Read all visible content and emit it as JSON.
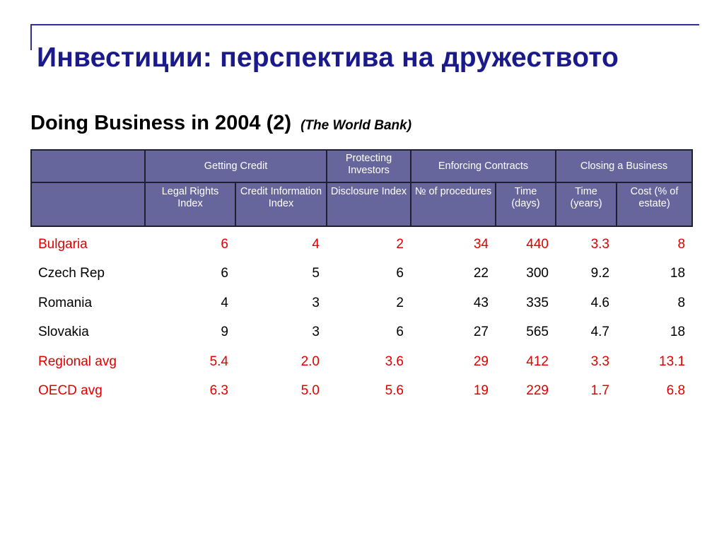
{
  "slide": {
    "title": "Инвестиции: перспектива на дружеството",
    "subtitle": "Doing Business in 2004 (2)",
    "source": "(The World Bank)"
  },
  "table": {
    "group_headers": [
      "Getting Credit",
      "Protecting Investors",
      "Enforcing Contracts",
      "Closing a Business"
    ],
    "column_headers": [
      "Legal Rights Index",
      "Credit Information Index",
      "Disclosure Index",
      "№ of procedures",
      "Time (days)",
      "Time (years)",
      "Cost (% of estate)"
    ],
    "rows": [
      {
        "country": "Bulgaria",
        "values": [
          "6",
          "4",
          "2",
          "34",
          "440",
          "3.3",
          "8"
        ],
        "highlight": true
      },
      {
        "country": "Czech Rep",
        "values": [
          "6",
          "5",
          "6",
          "22",
          "300",
          "9.2",
          "18"
        ],
        "highlight": false
      },
      {
        "country": "Romania",
        "values": [
          "4",
          "3",
          "2",
          "43",
          "335",
          "4.6",
          "8"
        ],
        "highlight": false
      },
      {
        "country": "Slovakia",
        "values": [
          "9",
          "3",
          "6",
          "27",
          "565",
          "4.7",
          "18"
        ],
        "highlight": false
      },
      {
        "country": "Regional avg",
        "values": [
          "5.4",
          "2.0",
          "3.6",
          "29",
          "412",
          "3.3",
          "13.1"
        ],
        "highlight": true
      },
      {
        "country": "OECD avg",
        "values": [
          "6.3",
          "5.0",
          "5.6",
          "19",
          "229",
          "1.7",
          "6.8"
        ],
        "highlight": true
      }
    ]
  },
  "colors": {
    "title": "#1a1a8c",
    "header_bg": "#66669c",
    "highlight_text": "#e00000"
  }
}
